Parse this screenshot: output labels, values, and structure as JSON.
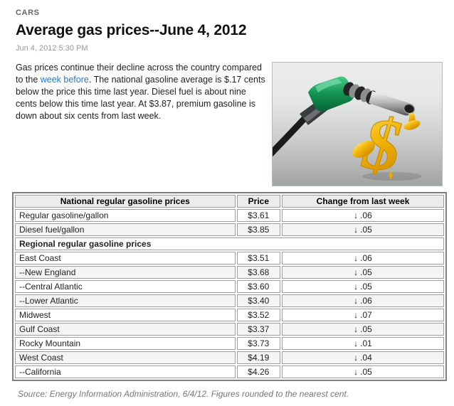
{
  "page": {
    "category": "CARS",
    "title": "Average gas prices--June 4, 2012",
    "timestamp": "Jun 4, 2012 5:30 PM",
    "paragraph": {
      "before_link": "Gas prices continue their decline across the country compared to the ",
      "link_text": "week before",
      "after_link": ". The national gasoline average is $.17 cents below the price this time last year. Diesel fuel is about nine cents below this time last year. At $3.87, premium gasoline is down about six cents from last week."
    },
    "image": {
      "description": "Green gas pump nozzle pouring a golden dollar sign of liquid fuel"
    },
    "source_note": "Source: Energy Information Administration, 6/4/12. Figures rounded to the nearest cent."
  },
  "table": {
    "headers": [
      "National regular gasoline prices",
      "Price",
      "Change from last week"
    ],
    "section_header": "Regional regular gasoline prices",
    "change_arrow": "↓",
    "national_rows": [
      {
        "label": "Regular gasoline/gallon",
        "price": "$3.61",
        "change": ".06"
      },
      {
        "label": "Diesel fuel/gallon",
        "price": "$3.85",
        "change": ".05"
      }
    ],
    "regional_rows": [
      {
        "label": "East Coast",
        "price": "$3.51",
        "change": ".06"
      },
      {
        "label": "--New England",
        "price": "$3.68",
        "change": ".05"
      },
      {
        "label": "--Central Atlantic",
        "price": "$3.60",
        "change": ".05"
      },
      {
        "label": "--Lower Atlantic",
        "price": "$3.40",
        "change": ".06"
      },
      {
        "label": "Midwest",
        "price": "$3.52",
        "change": ".07"
      },
      {
        "label": "Gulf Coast",
        "price": "$3.37",
        "change": ".05"
      },
      {
        "label": "Rocky Mountain",
        "price": "$3.73",
        "change": ".01"
      },
      {
        "label": "West Coast",
        "price": "$4.19",
        "change": ".04"
      },
      {
        "label": "--California",
        "price": "$4.26",
        "change": ".05"
      }
    ]
  },
  "colors": {
    "link": "#2577c8",
    "table_header_bg": "#ececec",
    "alt_row_bg": "#f4f4f4",
    "nozzle_green": "#12914f",
    "dollar_gold": "#f2b705"
  }
}
